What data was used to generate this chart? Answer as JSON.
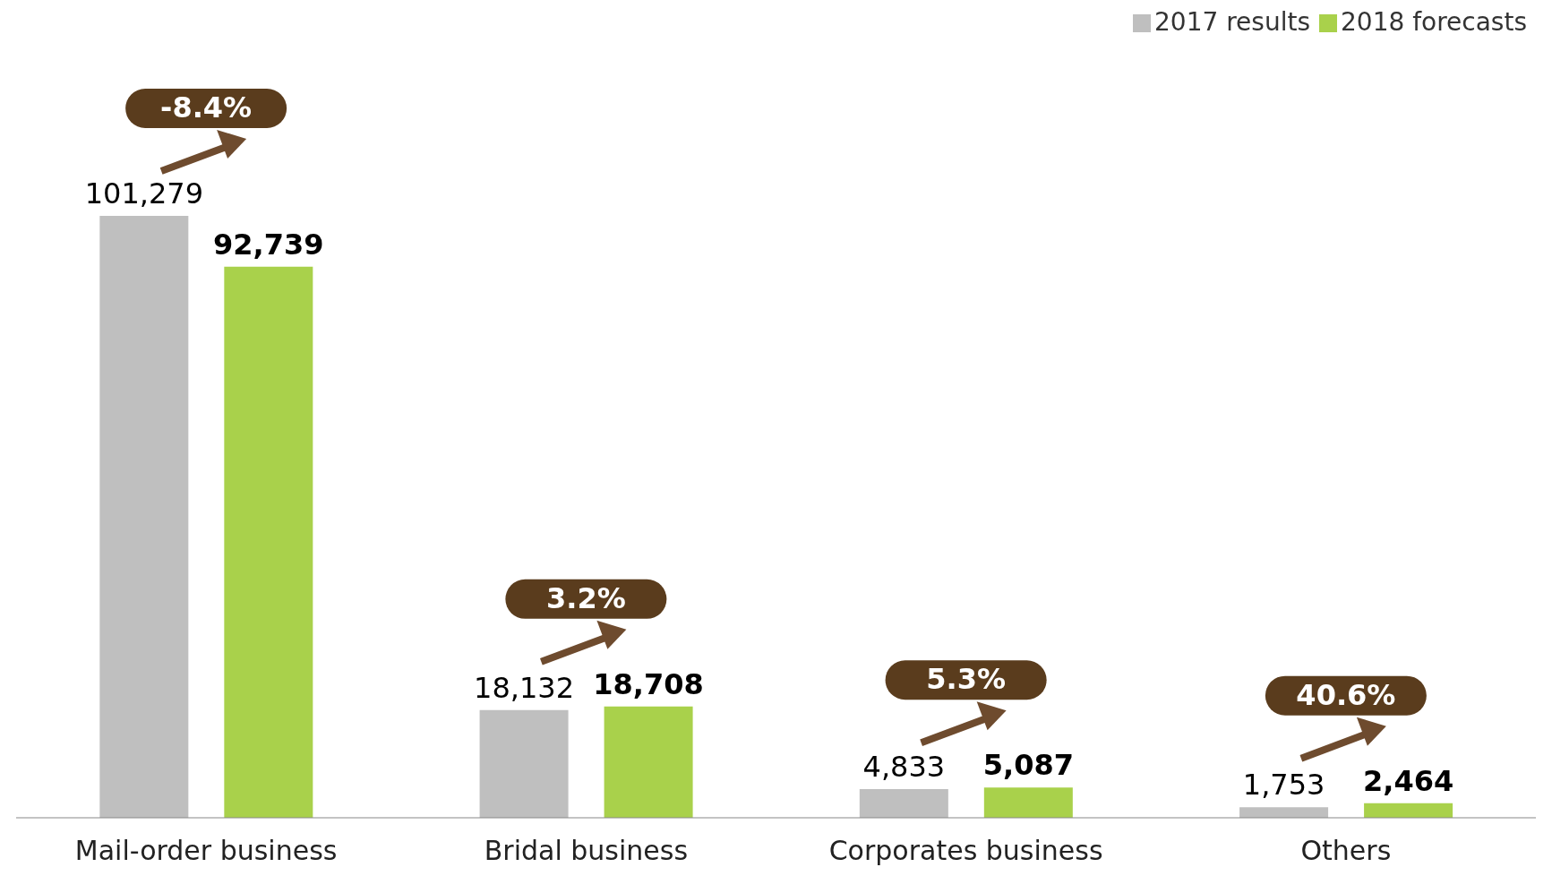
{
  "chart_data": {
    "type": "bar",
    "categories": [
      "Mail-order business",
      "Bridal business",
      "Corporates business",
      "Others"
    ],
    "series": [
      {
        "name": "2017 results",
        "color": "#bfbfbf",
        "values": [
          101279,
          18132,
          4833,
          1753
        ],
        "value_labels": [
          "101,279",
          "18,132",
          "4,833",
          "1,753"
        ]
      },
      {
        "name": "2018 forecasts",
        "color": "#a9d14b",
        "values": [
          92739,
          18708,
          5087,
          2464
        ],
        "value_labels": [
          "92,739",
          "18,708",
          "5,087",
          "2,464"
        ]
      }
    ],
    "legend": "top right",
    "tick_labels": "x",
    "annotations": [
      "-8.4%",
      "3.2%",
      "5.3%",
      "40.6%"
    ]
  }
}
